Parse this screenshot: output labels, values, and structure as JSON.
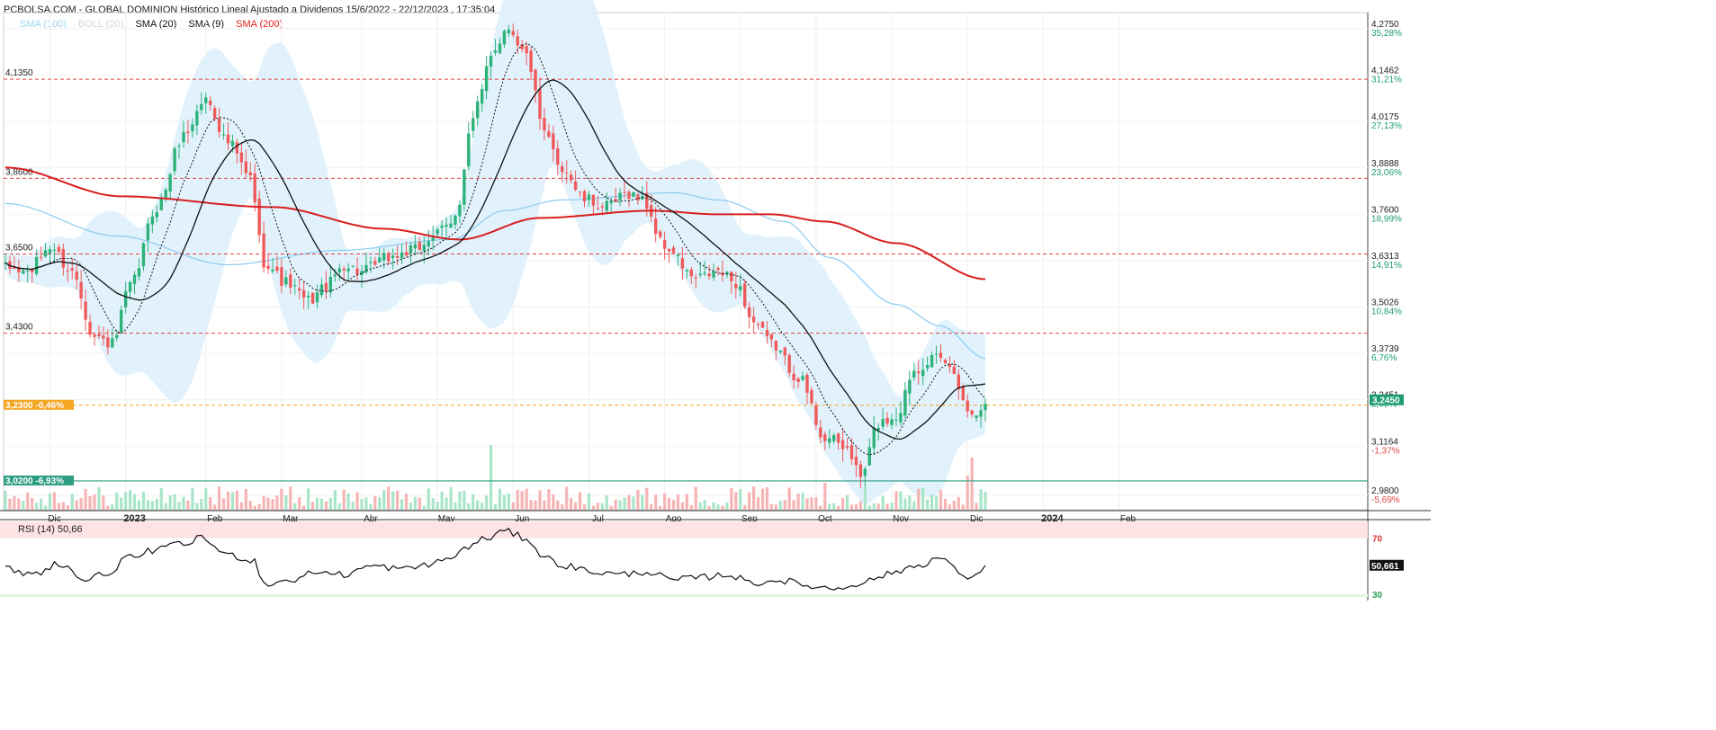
{
  "header": {
    "title": "PCBOLSA.COM - GLOBAL DOMINION Histórico Lineal Ajustado a Dividenos 15/6/2022 - 22/12/2023 , 17:35:04"
  },
  "legend": [
    {
      "label": "SMA (100)",
      "color": "#9fd4f2"
    },
    {
      "label": "BOLL (20)",
      "color": "#d6d6d6"
    },
    {
      "label": "SMA (20)",
      "color": "#111111"
    },
    {
      "label": "SMA (9)",
      "color": "#111111"
    },
    {
      "label": "SMA (200)",
      "color": "#e01e1e"
    }
  ],
  "colors": {
    "up": "#2db27a",
    "down": "#f05a5a",
    "sma200": "#d91e1e",
    "sma100": "#8ccbef",
    "boll_fill": "#dcf0fb",
    "level_line": "#e34040",
    "current": "#f5a623",
    "support": "#2d9d82",
    "price_badge": "#1f9c74",
    "rsi_high_zone": "#fde3e3",
    "rsi_low_zone": "#e2f7e2"
  },
  "chart_data": [
    {
      "type": "candlestick",
      "panel": "price",
      "title": "PCBOLSA.COM - GLOBAL DOMINION Histórico Lineal Ajustado a Dividenos 15/6/2022 - 22/12/2023 , 17:35:04",
      "x_labels": [
        "Dic",
        "2023",
        "Feb",
        "Mar",
        "Abr",
        "May",
        "Jun",
        "Jul",
        "Ago",
        "Sep",
        "Oct",
        "Nov",
        "Dic",
        "2024",
        "Feb"
      ],
      "y_range": [
        2.94,
        4.32
      ],
      "y_ticks": [
        {
          "price": "4,2750",
          "pct": "35,28%"
        },
        {
          "price": "4,1462",
          "pct": "31,21%"
        },
        {
          "price": "4,0175",
          "pct": "27,13%"
        },
        {
          "price": "3,8888",
          "pct": "23,06%"
        },
        {
          "price": "3,7600",
          "pct": "18,99%"
        },
        {
          "price": "3,6313",
          "pct": "14,91%"
        },
        {
          "price": "3,5026",
          "pct": "10,84%"
        },
        {
          "price": "3,3739",
          "pct": "6,76%"
        },
        {
          "price": "3,2451",
          "pct": "2,69%"
        },
        {
          "price": "3,1164",
          "pct": "-1,37%"
        },
        {
          "price": "2,9800",
          "pct": "-5,69%"
        }
      ],
      "levels": [
        {
          "label": "4,1350",
          "value": 4.135
        },
        {
          "label": "3,8600",
          "value": 3.86
        },
        {
          "label": "3,6500",
          "value": 3.65
        },
        {
          "label": "3,4300",
          "value": 3.43
        }
      ],
      "current_level": {
        "price": "3,2300",
        "pct": "-0,46%",
        "value": 3.23
      },
      "support_level": {
        "price": "3,0200",
        "pct": "-6,93%",
        "value": 3.02
      },
      "last_price": "3,2450",
      "sma200_anchors": [
        [
          0,
          3.89
        ],
        [
          26,
          3.81
        ],
        [
          60,
          3.78
        ],
        [
          85,
          3.72
        ],
        [
          102,
          3.69
        ],
        [
          120,
          3.75
        ],
        [
          145,
          3.77
        ],
        [
          160,
          3.76
        ],
        [
          172,
          3.76
        ],
        [
          184,
          3.74
        ],
        [
          200,
          3.68
        ],
        [
          220,
          3.58
        ]
      ],
      "sma100_anchors": [
        [
          0,
          3.79
        ],
        [
          25,
          3.7
        ],
        [
          50,
          3.62
        ],
        [
          75,
          3.66
        ],
        [
          100,
          3.69
        ],
        [
          112,
          3.77
        ],
        [
          125,
          3.8
        ],
        [
          150,
          3.82
        ],
        [
          160,
          3.8
        ],
        [
          175,
          3.74
        ],
        [
          185,
          3.64
        ],
        [
          200,
          3.51
        ],
        [
          210,
          3.45
        ],
        [
          220,
          3.36
        ]
      ],
      "price_anchors": [
        [
          0,
          3.61
        ],
        [
          5,
          3.6
        ],
        [
          10,
          3.67
        ],
        [
          15,
          3.6
        ],
        [
          20,
          3.42
        ],
        [
          24,
          3.4
        ],
        [
          28,
          3.56
        ],
        [
          34,
          3.78
        ],
        [
          40,
          3.98
        ],
        [
          45,
          4.08
        ],
        [
          50,
          3.96
        ],
        [
          55,
          3.86
        ],
        [
          58,
          3.63
        ],
        [
          63,
          3.57
        ],
        [
          68,
          3.52
        ],
        [
          72,
          3.56
        ],
        [
          76,
          3.62
        ],
        [
          80,
          3.6
        ],
        [
          86,
          3.64
        ],
        [
          92,
          3.66
        ],
        [
          96,
          3.7
        ],
        [
          100,
          3.73
        ],
        [
          102,
          3.8
        ],
        [
          104,
          3.98
        ],
        [
          106,
          4.06
        ],
        [
          109,
          4.21
        ],
        [
          113,
          4.28
        ],
        [
          117,
          4.2
        ],
        [
          121,
          3.98
        ],
        [
          125,
          3.89
        ],
        [
          130,
          3.8
        ],
        [
          135,
          3.78
        ],
        [
          140,
          3.82
        ],
        [
          143,
          3.8
        ],
        [
          148,
          3.67
        ],
        [
          155,
          3.58
        ],
        [
          160,
          3.6
        ],
        [
          164,
          3.57
        ],
        [
          168,
          3.46
        ],
        [
          172,
          3.4
        ],
        [
          178,
          3.31
        ],
        [
          184,
          3.14
        ],
        [
          189,
          3.11
        ],
        [
          192,
          3.03
        ],
        [
          196,
          3.18
        ],
        [
          200,
          3.2
        ],
        [
          204,
          3.33
        ],
        [
          208,
          3.36
        ],
        [
          212,
          3.34
        ],
        [
          214,
          3.28
        ],
        [
          217,
          3.2
        ],
        [
          220,
          3.245
        ]
      ]
    },
    {
      "type": "line",
      "panel": "rsi",
      "label": "RSI (14)",
      "value": "50,66",
      "last_value": "50,661",
      "y_range": [
        28,
        82
      ],
      "levels": [
        {
          "label": "70",
          "value": 70
        },
        {
          "label": "30",
          "value": 30
        }
      ],
      "rsi_anchors": [
        [
          0,
          48
        ],
        [
          6,
          44
        ],
        [
          12,
          52
        ],
        [
          18,
          40
        ],
        [
          22,
          44
        ],
        [
          28,
          56
        ],
        [
          34,
          62
        ],
        [
          40,
          66
        ],
        [
          44,
          70
        ],
        [
          50,
          58
        ],
        [
          56,
          54
        ],
        [
          58,
          37
        ],
        [
          64,
          40
        ],
        [
          70,
          46
        ],
        [
          76,
          44
        ],
        [
          82,
          50
        ],
        [
          90,
          48
        ],
        [
          96,
          52
        ],
        [
          100,
          56
        ],
        [
          104,
          64
        ],
        [
          108,
          70
        ],
        [
          112,
          75
        ],
        [
          117,
          70
        ],
        [
          121,
          56
        ],
        [
          126,
          50
        ],
        [
          132,
          46
        ],
        [
          138,
          44
        ],
        [
          144,
          46
        ],
        [
          150,
          40
        ],
        [
          156,
          42
        ],
        [
          162,
          44
        ],
        [
          168,
          38
        ],
        [
          174,
          40
        ],
        [
          180,
          36
        ],
        [
          186,
          34
        ],
        [
          192,
          38
        ],
        [
          198,
          44
        ],
        [
          204,
          50
        ],
        [
          210,
          56
        ],
        [
          214,
          46
        ],
        [
          217,
          40
        ],
        [
          220,
          50.66
        ]
      ]
    }
  ]
}
